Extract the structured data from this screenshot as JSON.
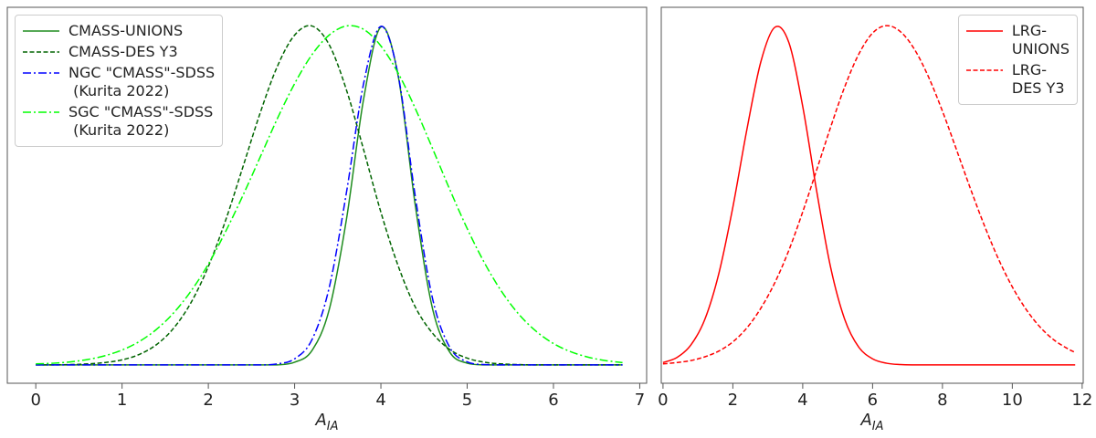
{
  "chart_data": [
    {
      "type": "line",
      "xlabel": "A",
      "xlabel_subscript": "IA",
      "legend": "upper left",
      "xlim": [
        -0.33,
        7.08
      ],
      "ylim": [
        -0.054,
        1.054
      ],
      "xticks": [
        0,
        1,
        2,
        3,
        4,
        5,
        6,
        7
      ],
      "x": [
        0,
        0.2,
        0.4,
        0.6,
        0.8,
        1,
        1.2,
        1.4,
        1.6,
        1.8,
        2,
        2.2,
        2.4,
        2.6,
        2.8,
        3,
        3.2,
        3.4,
        3.6,
        3.8,
        4,
        4.2,
        4.4,
        4.6,
        4.8,
        5,
        5.2,
        5.4,
        5.6,
        5.8,
        6,
        6.2,
        6.4,
        6.6,
        6.8
      ],
      "series": [
        {
          "name": "CMASS-UNIONS",
          "color": "#1e8c1e",
          "linestyle": "solid",
          "values": [
            0,
            0,
            0,
            0,
            0,
            0,
            0,
            0,
            0,
            0,
            0,
            0,
            0,
            0,
            0,
            0.008,
            0.042,
            0.162,
            0.428,
            0.784,
            0.996,
            0.852,
            0.468,
            0.164,
            0.037,
            0.005,
            0,
            0,
            0,
            0,
            0,
            0,
            0,
            0,
            0
          ]
        },
        {
          "name": "CMASS-DES Y3",
          "color": "#006400",
          "linestyle": "dashed",
          "values": [
            0,
            0,
            0.001,
            0.003,
            0.007,
            0.015,
            0.031,
            0.06,
            0.109,
            0.184,
            0.29,
            0.426,
            0.583,
            0.742,
            0.88,
            0.972,
            0.999,
            0.944,
            0.811,
            0.634,
            0.45,
            0.292,
            0.17,
            0.093,
            0.045,
            0.02,
            0.008,
            0.003,
            0.001,
            0,
            0,
            0,
            0,
            0,
            0
          ]
        },
        {
          "name": "NGC \"CMASS\"-SDSS\n (Kurita 2022)",
          "color": "#0000ff",
          "linestyle": "dashdot",
          "values": [
            0,
            0,
            0,
            0,
            0,
            0,
            0,
            0,
            0,
            0,
            0,
            0,
            0,
            0,
            0.003,
            0.018,
            0.074,
            0.227,
            0.507,
            0.83,
            0.998,
            0.854,
            0.494,
            0.194,
            0.051,
            0.009,
            0.001,
            0,
            0,
            0,
            0,
            0,
            0,
            0,
            0
          ]
        },
        {
          "name": "SGC \"CMASS\"-SDSS\n (Kurita 2022)",
          "color": "#00ff00",
          "linestyle": "dashdot",
          "values": [
            0.003,
            0.005,
            0.009,
            0.016,
            0.027,
            0.044,
            0.069,
            0.105,
            0.154,
            0.218,
            0.297,
            0.393,
            0.499,
            0.612,
            0.726,
            0.829,
            0.914,
            0.972,
            0.999,
            0.989,
            0.94,
            0.86,
            0.755,
            0.637,
            0.516,
            0.402,
            0.301,
            0.216,
            0.149,
            0.099,
            0.063,
            0.039,
            0.023,
            0.013,
            0.007
          ]
        }
      ]
    },
    {
      "type": "line",
      "xlabel": "A",
      "xlabel_subscript": "IA",
      "legend": "upper right",
      "xlim": [
        -0.05,
        12.03
      ],
      "ylim": [
        -0.054,
        1.054
      ],
      "xticks": [
        0,
        2,
        4,
        6,
        8,
        10,
        12
      ],
      "x": [
        0,
        0.4,
        0.8,
        1.2,
        1.6,
        2,
        2.4,
        2.8,
        3.2,
        3.6,
        4,
        4.4,
        4.8,
        5.2,
        5.6,
        6,
        6.4,
        6.8,
        7.2,
        7.6,
        8,
        8.4,
        8.8,
        9.2,
        9.6,
        10,
        10.4,
        10.8,
        11.2,
        11.6,
        11.8
      ],
      "series": [
        {
          "name": "LRG-\nUNIONS",
          "color": "#ff0000",
          "linestyle": "solid",
          "values": [
            0.007,
            0.022,
            0.059,
            0.135,
            0.27,
            0.465,
            0.693,
            0.893,
            0.995,
            0.951,
            0.762,
            0.512,
            0.287,
            0.135,
            0.053,
            0.018,
            0.005,
            0.001,
            0,
            0,
            0,
            0,
            0,
            0,
            0,
            0,
            0,
            0,
            0,
            0,
            0
          ]
        },
        {
          "name": "LRG-\nDES Y3",
          "color": "#ff0000",
          "linestyle": "dashed",
          "values": [
            0.003,
            0.007,
            0.013,
            0.024,
            0.041,
            0.068,
            0.109,
            0.167,
            0.242,
            0.337,
            0.451,
            0.575,
            0.701,
            0.819,
            0.915,
            0.978,
            1,
            0.982,
            0.93,
            0.849,
            0.748,
            0.635,
            0.52,
            0.411,
            0.313,
            0.23,
            0.163,
            0.111,
            0.073,
            0.047,
            0.037
          ]
        }
      ]
    }
  ]
}
